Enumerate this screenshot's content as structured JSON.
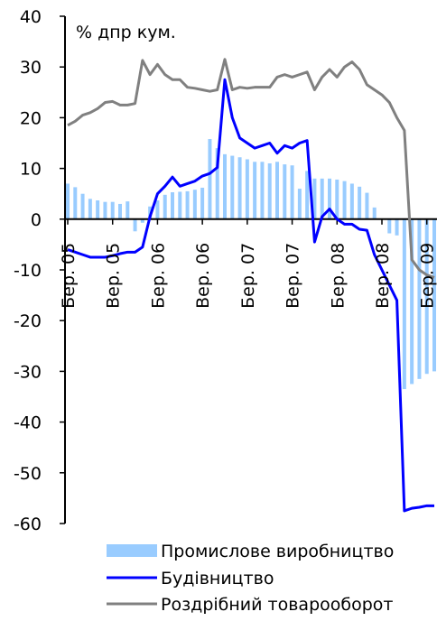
{
  "chart_data": {
    "type": "bar+line",
    "unit_label": "% дпр кум.",
    "ylim": [
      -60,
      40
    ],
    "y_ticks": [
      40,
      30,
      20,
      10,
      0,
      -10,
      -20,
      -30,
      -40,
      -50,
      -60
    ],
    "x_ticks": [
      "Бер. 05",
      "Вер. 05",
      "Бер. 06",
      "Вер. 06",
      "Бер. 07",
      "Вер. 07",
      "Бер. 08",
      "Вер. 08",
      "Бер. 09"
    ],
    "x_tick_positions": [
      0,
      6,
      12,
      18,
      24,
      30,
      36,
      42,
      48
    ],
    "x_range": [
      0,
      49
    ],
    "grid": false,
    "legend_position": "bottom",
    "series": [
      {
        "name": "Промислове виробництво",
        "type": "bar",
        "color": "#99ccff",
        "x": [
          0,
          1,
          2,
          3,
          4,
          5,
          6,
          7,
          8,
          9,
          10,
          11,
          12,
          13,
          14,
          15,
          16,
          17,
          18,
          19,
          20,
          21,
          22,
          23,
          24,
          25,
          26,
          27,
          28,
          29,
          30,
          31,
          32,
          33,
          34,
          35,
          36,
          37,
          38,
          39,
          40,
          41,
          42,
          43,
          44,
          45,
          46,
          47,
          48,
          49
        ],
        "values": [
          7.0,
          6.3,
          5.0,
          4.0,
          3.7,
          3.4,
          3.4,
          3.0,
          3.5,
          -2.4,
          -0.7,
          2.5,
          3.7,
          4.8,
          5.3,
          5.4,
          5.5,
          5.8,
          6.2,
          15.8,
          14.0,
          12.8,
          12.5,
          12.2,
          11.8,
          11.3,
          11.3,
          11.0,
          11.3,
          10.8,
          10.6,
          6.0,
          9.5,
          8.0,
          8.0,
          8.0,
          7.8,
          7.5,
          7.0,
          6.4,
          5.2,
          2.3,
          0.0,
          -2.8,
          -3.2,
          -33.5,
          -32.5,
          -31.5,
          -30.5,
          -30.0
        ]
      },
      {
        "name": "Будівництво",
        "type": "line",
        "color": "#0000ff",
        "x": [
          0,
          1,
          2,
          3,
          4,
          5,
          6,
          7,
          8,
          9,
          10,
          11,
          12,
          13,
          14,
          15,
          16,
          17,
          18,
          19,
          20,
          21,
          22,
          23,
          24,
          25,
          26,
          27,
          28,
          29,
          30,
          31,
          32,
          33,
          34,
          35,
          36,
          37,
          38,
          39,
          40,
          41,
          42,
          43,
          44,
          45,
          46,
          47,
          48,
          49
        ],
        "values": [
          -6.0,
          -6.5,
          -7.0,
          -7.5,
          -7.5,
          -7.5,
          -7.2,
          -6.8,
          -6.5,
          -6.5,
          -5.5,
          0.5,
          5.0,
          6.5,
          8.3,
          6.5,
          7.0,
          7.5,
          8.5,
          9.0,
          10.2,
          27.5,
          20.0,
          16.0,
          15.0,
          14.0,
          14.5,
          15.0,
          13.0,
          14.5,
          14.0,
          15.0,
          15.5,
          -4.5,
          0.5,
          2.0,
          0.0,
          -1.0,
          -1.0,
          -2.0,
          -2.2,
          -7.0,
          -10.0,
          -13.0,
          -16.0,
          -57.5,
          -57.0,
          -56.8,
          -56.5,
          -56.5
        ]
      },
      {
        "name": "Роздрібний товарооборот",
        "type": "line",
        "color": "#808080",
        "x": [
          0,
          1,
          2,
          3,
          4,
          5,
          6,
          7,
          8,
          9,
          10,
          11,
          12,
          13,
          14,
          15,
          16,
          17,
          18,
          19,
          20,
          21,
          22,
          23,
          24,
          25,
          26,
          27,
          28,
          29,
          30,
          31,
          32,
          33,
          34,
          35,
          36,
          37,
          38,
          39,
          40,
          41,
          42,
          43,
          44,
          45,
          46,
          47,
          48,
          49
        ],
        "values": [
          18.5,
          19.3,
          20.5,
          21.0,
          21.8,
          23.0,
          23.2,
          22.5,
          22.5,
          22.8,
          31.3,
          28.5,
          30.5,
          28.5,
          27.5,
          27.5,
          26.0,
          25.8,
          25.5,
          25.2,
          25.5,
          31.5,
          25.5,
          26.0,
          25.8,
          26.0,
          26.0,
          26.0,
          28.0,
          28.5,
          28.0,
          28.5,
          29.0,
          25.5,
          28.0,
          29.5,
          28.0,
          30.0,
          31.0,
          29.5,
          26.5,
          25.5,
          24.5,
          23.0,
          20.0,
          17.5,
          -8.0,
          -10.0,
          -11.0,
          -11.5
        ]
      }
    ]
  }
}
